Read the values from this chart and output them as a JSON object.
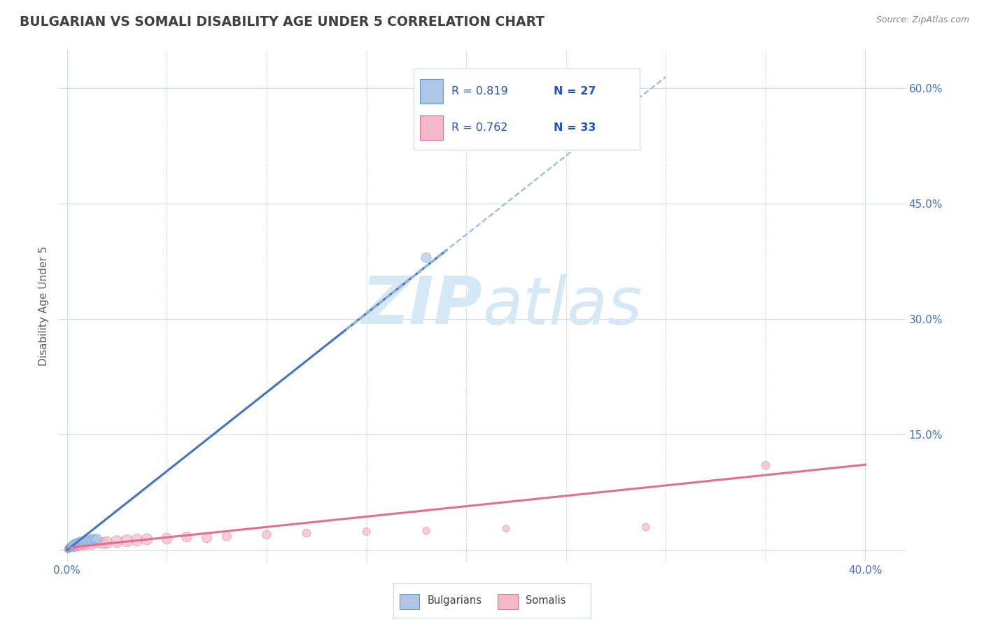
{
  "title": "BULGARIAN VS SOMALI DISABILITY AGE UNDER 5 CORRELATION CHART",
  "source": "Source: ZipAtlas.com",
  "ylabel_label": "Disability Age Under 5",
  "xlim": [
    -0.004,
    0.42
  ],
  "ylim": [
    -0.015,
    0.65
  ],
  "yticks": [
    0.0,
    0.15,
    0.3,
    0.45,
    0.6
  ],
  "xticks": [
    0.0,
    0.4
  ],
  "xtick_labels": [
    "0.0%",
    "40.0%"
  ],
  "legend_items": [
    {
      "label_r": "R = 0.819",
      "label_n": "N = 27",
      "color": "#aec6e8",
      "edge": "#5b9bd5"
    },
    {
      "label_r": "R = 0.762",
      "label_n": "N = 33",
      "color": "#f4b8c8",
      "edge": "#e07090"
    }
  ],
  "watermark_zip": "ZIP",
  "watermark_atlas": "atlas",
  "watermark_color": "#d5e8f5",
  "bg_color": "#ffffff",
  "grid_color": "#ccdce8",
  "title_color": "#404040",
  "tick_color": "#4472c4",
  "bulgarian_scatter": {
    "x": [
      0.0005,
      0.001,
      0.001,
      0.0015,
      0.002,
      0.002,
      0.002,
      0.003,
      0.003,
      0.003,
      0.004,
      0.004,
      0.005,
      0.005,
      0.006,
      0.006,
      0.007,
      0.007,
      0.008,
      0.009,
      0.01,
      0.011,
      0.012,
      0.013,
      0.014,
      0.015,
      0.18
    ],
    "y": [
      0.001,
      0.002,
      0.003,
      0.004,
      0.004,
      0.005,
      0.006,
      0.005,
      0.006,
      0.008,
      0.007,
      0.009,
      0.008,
      0.01,
      0.009,
      0.011,
      0.01,
      0.012,
      0.011,
      0.013,
      0.012,
      0.014,
      0.013,
      0.015,
      0.014,
      0.015,
      0.38
    ],
    "color": "#aec6e8",
    "edge_color": "#5b9bd5",
    "alpha": 0.7,
    "sizes": [
      40,
      45,
      50,
      55,
      60,
      55,
      50,
      60,
      55,
      65,
      60,
      70,
      65,
      70,
      65,
      70,
      75,
      70,
      75,
      80,
      75,
      80,
      85,
      80,
      85,
      90,
      100
    ]
  },
  "somali_scatter": {
    "x": [
      0.0005,
      0.001,
      0.001,
      0.002,
      0.003,
      0.003,
      0.004,
      0.004,
      0.005,
      0.006,
      0.007,
      0.008,
      0.009,
      0.01,
      0.012,
      0.015,
      0.018,
      0.02,
      0.025,
      0.03,
      0.035,
      0.04,
      0.05,
      0.06,
      0.07,
      0.08,
      0.1,
      0.12,
      0.15,
      0.18,
      0.22,
      0.29,
      0.35
    ],
    "y": [
      0.001,
      0.002,
      0.003,
      0.004,
      0.003,
      0.005,
      0.004,
      0.006,
      0.005,
      0.007,
      0.006,
      0.008,
      0.007,
      0.009,
      0.008,
      0.01,
      0.009,
      0.01,
      0.011,
      0.012,
      0.013,
      0.014,
      0.015,
      0.017,
      0.016,
      0.018,
      0.02,
      0.022,
      0.024,
      0.025,
      0.028,
      0.03,
      0.11
    ],
    "color": "#f4b8c8",
    "edge_color": "#e07090",
    "alpha": 0.7,
    "sizes": [
      55,
      60,
      65,
      70,
      75,
      80,
      85,
      90,
      95,
      100,
      105,
      110,
      115,
      120,
      125,
      130,
      135,
      140,
      145,
      150,
      140,
      130,
      120,
      110,
      100,
      90,
      80,
      70,
      60,
      55,
      50,
      60,
      70
    ]
  },
  "bulgarian_line": {
    "x_start": 0.0,
    "x_end": 0.19,
    "slope": 2.05,
    "intercept": 0.0,
    "color": "#4472c4",
    "linewidth": 2.2
  },
  "bulgarian_line_ext": {
    "x_start": 0.14,
    "x_end": 0.3,
    "slope": 2.05,
    "intercept": 0.0,
    "color": "#9bbce0",
    "linewidth": 1.6,
    "linestyle": "--"
  },
  "somali_line": {
    "x_start": 0.0,
    "x_end": 0.4,
    "slope": 0.27,
    "intercept": 0.003,
    "color": "#e07090",
    "linewidth": 2.2
  }
}
